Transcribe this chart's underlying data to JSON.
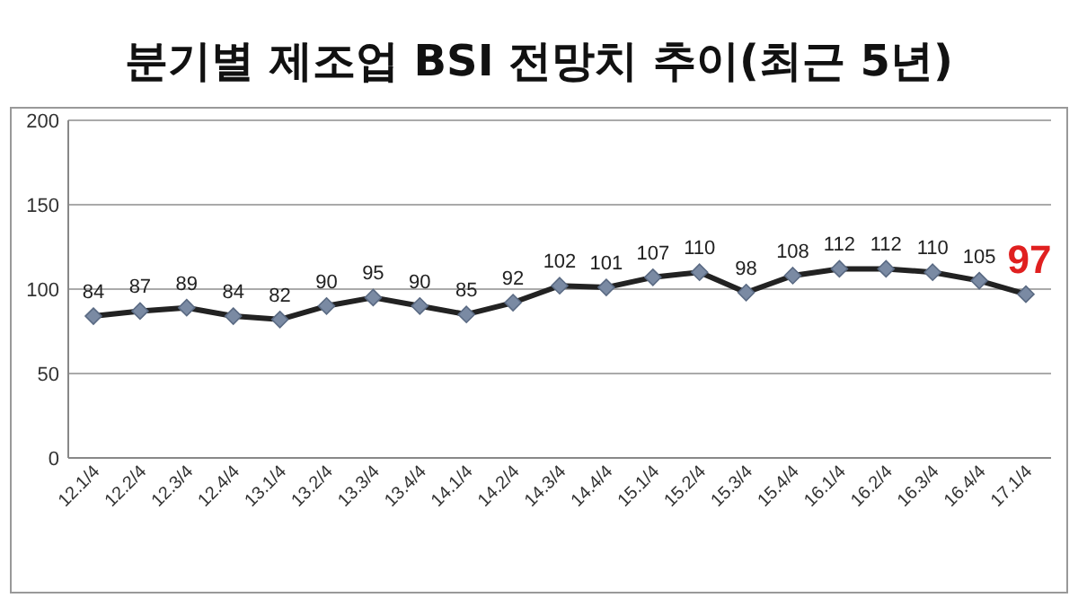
{
  "chart_data": {
    "type": "line",
    "title": "분기별 제조업 BSI 전망치 추이(최근 5년)",
    "categories": [
      "12.1/4",
      "12.2/4",
      "12.3/4",
      "12.4/4",
      "13.1/4",
      "13.2/4",
      "13.3/4",
      "13.4/4",
      "14.1/4",
      "14.2/4",
      "14.3/4",
      "14.4/4",
      "15.1/4",
      "15.2/4",
      "15.3/4",
      "15.4/4",
      "16.1/4",
      "16.2/4",
      "16.3/4",
      "16.4/4",
      "17.1/4"
    ],
    "series": [
      {
        "color": "#222222",
        "values": [
          84,
          87,
          89,
          84,
          82,
          90,
          95,
          90,
          85,
          92,
          102,
          101,
          107,
          110,
          98,
          108,
          112,
          112,
          110,
          105,
          97
        ]
      }
    ],
    "ylim": [
      0,
      200
    ],
    "yticks": [
      0,
      50,
      100,
      150,
      200
    ],
    "grid": "y",
    "marker": "diamond",
    "line_style": "solid",
    "data_labels": true
  }
}
